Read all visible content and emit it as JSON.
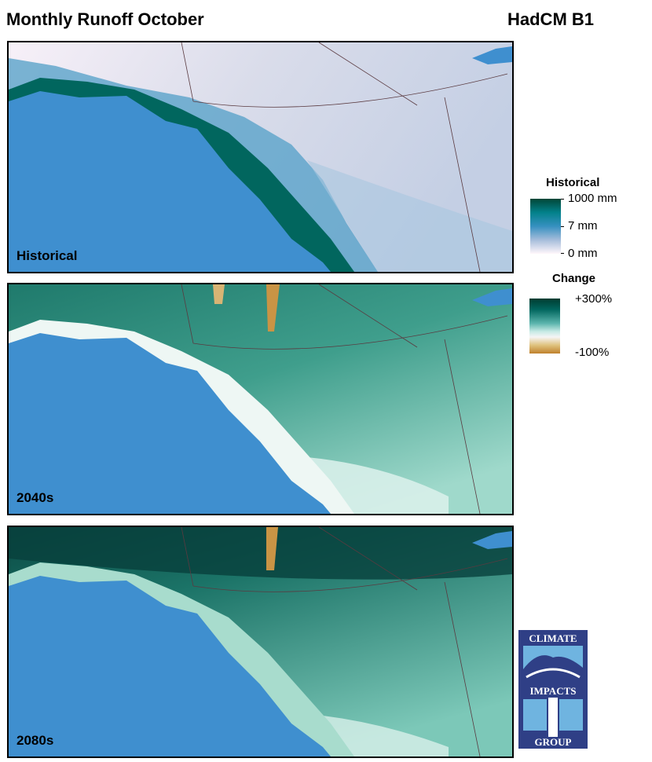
{
  "title": "Monthly Runoff October",
  "model": "HadCM B1",
  "panels": [
    {
      "label": "Historical"
    },
    {
      "label": "2040s"
    },
    {
      "label": "2080s"
    }
  ],
  "legend": {
    "historical": {
      "title": "Historical",
      "labels": [
        "1000 mm",
        "7 mm",
        "0 mm"
      ],
      "colors": [
        "#014636",
        "#02818a",
        "#3690c0",
        "#a6bddb",
        "#fff7fb"
      ]
    },
    "change": {
      "title": "Change",
      "labels": [
        "+300%",
        "-100%"
      ],
      "colors": [
        "#003c30",
        "#01665e",
        "#5ab4ac",
        "#c7eae5",
        "#f5f5f5",
        "#dfc27d",
        "#bf812d"
      ]
    }
  },
  "logo": {
    "lines": [
      "CLIMATE",
      "IMPACTS",
      "GROUP"
    ]
  },
  "colors": {
    "ocean": "#3f8fcf"
  }
}
